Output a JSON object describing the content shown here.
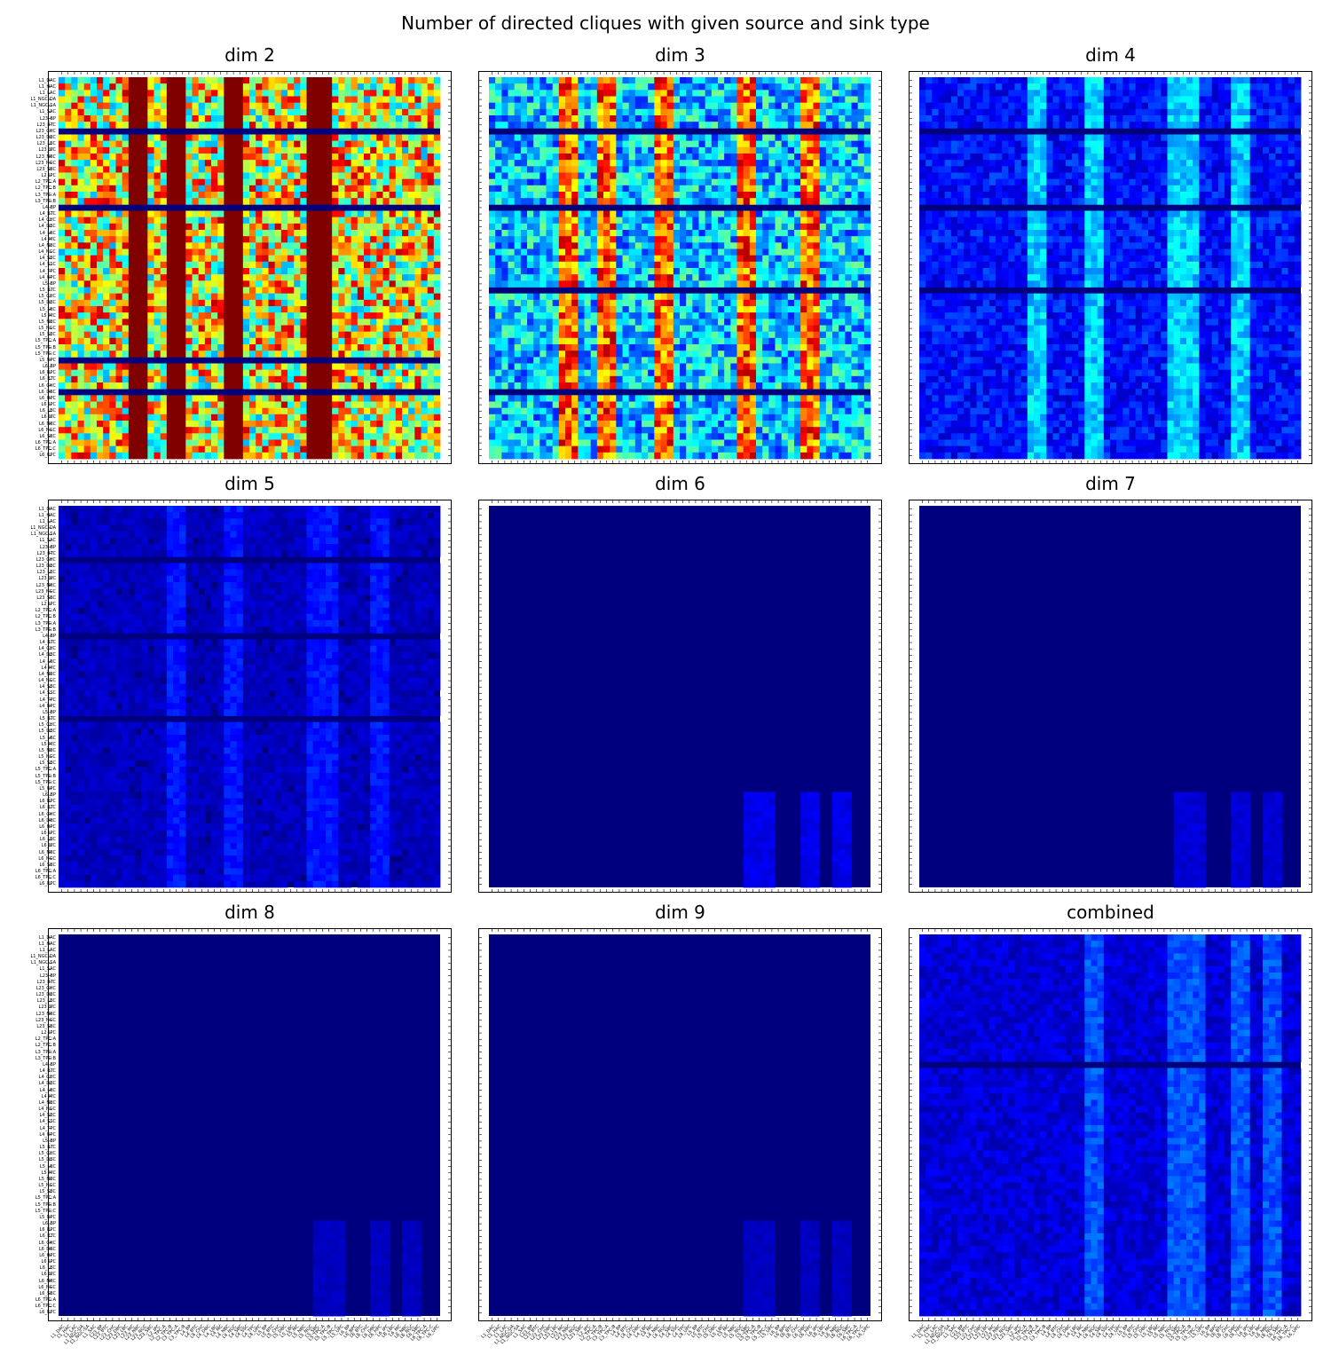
{
  "figure": {
    "suptitle": "Number of directed cliques with given source and sink type",
    "colormap": "jet"
  },
  "chart_data": {
    "type": "heatmap",
    "colormap": "jet",
    "categories": [
      "L1_DAC",
      "L1_HAC",
      "L1_LAC",
      "L1_NGC-DA",
      "L1_NGC-SA",
      "L1_SAC",
      "L23_BP",
      "L23_BTC",
      "L23_CHC",
      "L23_DBC",
      "L23_LBC",
      "L23_MC",
      "L23_NBC",
      "L23_NGC",
      "L23_SBC",
      "L2_IPC",
      "L2_TPC:A",
      "L2_TPC:B",
      "L3_TPC:A",
      "L3_TPC:B",
      "L4_BP",
      "L4_BTC",
      "L4_CHC",
      "L4_DBC",
      "L4_LBC",
      "L4_MC",
      "L4_NBC",
      "L4_NGC",
      "L4_SBC",
      "L4_SSC",
      "L4_TPC",
      "L4_UPC",
      "L5_BP",
      "L5_BTC",
      "L5_CHC",
      "L5_DBC",
      "L5_LBC",
      "L5_MC",
      "L5_NBC",
      "L5_NGC",
      "L5_SBC",
      "L5_TPC:A",
      "L5_TPC:B",
      "L5_TPC:C",
      "L5_UPC",
      "L6_BP",
      "L6_BPC",
      "L6_BTC",
      "L6_CHC",
      "L6_DBC",
      "L6_HPC",
      "L6_IPC",
      "L6_LBC",
      "L6_MC",
      "L6_NBC",
      "L6_NGC",
      "L6_SBC",
      "L6_TPC:A",
      "L6_TPC:C",
      "L6_UPC"
    ],
    "panels": [
      {
        "title": "dim 2",
        "level": 0.72,
        "rows_empty": [
          8,
          20,
          44,
          49
        ],
        "cols_hot": [
          12,
          18,
          27,
          40,
          41
        ],
        "lower_right_only": false
      },
      {
        "title": "dim 3",
        "level": 0.38,
        "rows_empty": [
          8,
          20,
          33,
          49
        ],
        "cols_hot": [
          12,
          18,
          27,
          40,
          50
        ],
        "lower_right_only": false
      },
      {
        "title": "dim 4",
        "level": 0.16,
        "rows_empty": [
          8,
          20,
          33
        ],
        "cols_hot": [
          18,
          27,
          40,
          42,
          50
        ],
        "lower_right_only": false
      },
      {
        "title": "dim 5",
        "level": 0.07,
        "rows_empty": [
          8,
          20,
          33
        ],
        "cols_hot": [
          18,
          27,
          40,
          42,
          50
        ],
        "lower_right_only": false
      },
      {
        "title": "dim 6",
        "level": 0.05,
        "rows_empty": [],
        "cols_hot": [
          40,
          43,
          50,
          55
        ],
        "lower_right_only": true
      },
      {
        "title": "dim 7",
        "level": 0.04,
        "rows_empty": [],
        "cols_hot": [
          40,
          43,
          50,
          55
        ],
        "lower_right_only": true
      },
      {
        "title": "dim 8",
        "level": 0.03,
        "rows_empty": [],
        "cols_hot": [
          40,
          43,
          50,
          55
        ],
        "lower_right_only": true
      },
      {
        "title": "dim 9",
        "level": 0.03,
        "rows_empty": [],
        "cols_hot": [
          40,
          43,
          50,
          55
        ],
        "lower_right_only": true
      },
      {
        "title": "combined",
        "level": 0.1,
        "rows_empty": [
          20
        ],
        "cols_hot": [
          27,
          40,
          43,
          50,
          55
        ],
        "lower_right_only": false
      }
    ]
  }
}
